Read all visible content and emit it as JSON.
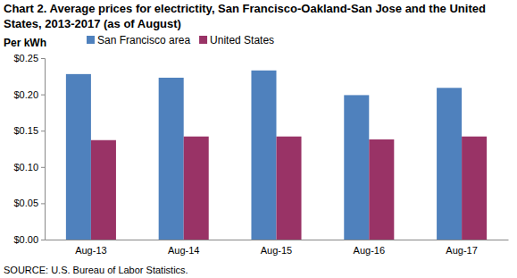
{
  "chart_data": {
    "type": "bar",
    "title": "Chart 2. Average prices for electrictity, San Francisco-Oakland-San Jose and the United States, 2013-2017 (as of August)",
    "y_label": "Per kWh",
    "source": "SOURCE: U.S. Bureau of Labor Statistics.",
    "categories": [
      "Aug-13",
      "Aug-14",
      "Aug-15",
      "Aug-16",
      "Aug-17"
    ],
    "series": [
      {
        "name": "San Francisco area",
        "color": "#4f81bd",
        "values": [
          0.228,
          0.223,
          0.233,
          0.199,
          0.209
        ]
      },
      {
        "name": "United States",
        "color": "#993366",
        "values": [
          0.137,
          0.142,
          0.142,
          0.138,
          0.142
        ]
      }
    ],
    "ylim": [
      0,
      0.25
    ],
    "yticks": [
      {
        "value": 0,
        "label": "$0.00"
      },
      {
        "value": 0.05,
        "label": "$0.05"
      },
      {
        "value": 0.1,
        "label": "$0.10"
      },
      {
        "value": 0.15,
        "label": "$0.15"
      },
      {
        "value": 0.2,
        "label": "$0.20"
      },
      {
        "value": 0.25,
        "label": "$0.25"
      }
    ],
    "grid": false,
    "legend": "top-left"
  }
}
